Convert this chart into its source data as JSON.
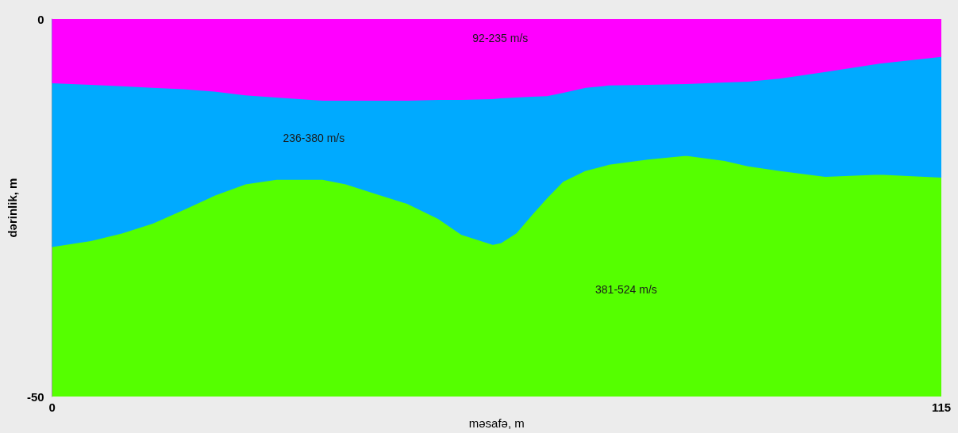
{
  "chart_data": {
    "type": "area",
    "stacked": true,
    "xlabel": "məsafə, m",
    "ylabel": "dərinlik, m",
    "xlim": [
      0,
      115
    ],
    "xticks": [
      0,
      115
    ],
    "ylim": [
      -50,
      0
    ],
    "yticks": [
      -50,
      0
    ],
    "grid": false,
    "marker": "none",
    "x": [
      0,
      5,
      9,
      13,
      17,
      21,
      25,
      29,
      35,
      38,
      42,
      46,
      50,
      53,
      57,
      58,
      60,
      62,
      64,
      66,
      69,
      72,
      77,
      82,
      87,
      90,
      94,
      100,
      107,
      115
    ],
    "series": [
      {
        "color": "#ff00ff",
        "values": [
          -8.4,
          -8.6,
          -8.8,
          -9.0,
          -9.2,
          -9.5,
          -10.0,
          -10.3,
          -10.7,
          -10.7,
          -10.7,
          -10.7,
          -10.6,
          -10.6,
          -10.5,
          -10.4,
          -10.3,
          -10.2,
          -10.1,
          -9.7,
          -9.0,
          -8.7,
          -8.6,
          -8.5,
          -8.3,
          -8.2,
          -7.8,
          -6.9,
          -5.8,
          -4.9
        ]
      },
      {
        "color": "#00aaff",
        "values": [
          -21.7,
          -20.7,
          -19.5,
          -18.0,
          -16.0,
          -13.8,
          -11.8,
          -10.9,
          -10.5,
          -11.1,
          -12.4,
          -13.7,
          -15.8,
          -17.9,
          -19.3,
          -19.2,
          -18.0,
          -15.7,
          -13.5,
          -11.8,
          -11.0,
          -10.5,
          -9.9,
          -9.5,
          -10.4,
          -11.2,
          -12.2,
          -13.9,
          -14.7,
          -16.0
        ]
      }
    ],
    "bands": [
      {
        "axis": "y",
        "from": -50,
        "to": 0,
        "color": "#55ff00"
      }
    ],
    "annotations": [
      "92-235 m/s",
      "236-380 m/s",
      "381-524 m/s"
    ]
  }
}
